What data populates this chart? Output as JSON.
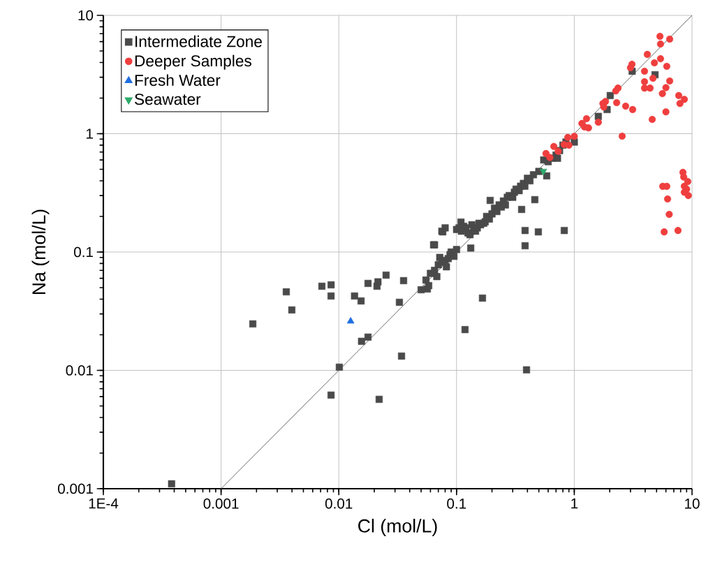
{
  "chart_data": {
    "type": "scatter",
    "xlabel": "Cl (mol/L)",
    "ylabel": "Na (mol/L)",
    "log": "xy",
    "grid": true,
    "legend": "top left",
    "xlim": [
      0.0001,
      10
    ],
    "ylim": [
      0.001,
      10
    ],
    "xticks": [
      {
        "value": 0.0001,
        "label": "1E-4"
      },
      0.001,
      0.01,
      0.1,
      1,
      10
    ],
    "yticks": [
      0.001,
      0.01,
      0.1,
      1,
      10
    ],
    "series": [
      {
        "name": "Intermediate Zone",
        "color": "#4a4a4a",
        "marker": "square",
        "x": [
          0.00038,
          0.00186,
          0.00358,
          0.00399,
          0.00718,
          0.00859,
          0.0086,
          0.00859,
          0.0101,
          0.0136,
          0.01545,
          0.0156,
          0.0177,
          0.0177,
          0.0211,
          0.0215,
          0.022,
          0.0252,
          0.0327,
          0.0341,
          0.0355,
          0.0565,
          0.166,
          0.118,
          0.393,
          0.382,
          0.495,
          0.822,
          0.382,
          0.462,
          0.357,
          0.583,
          0.132,
          0.0638,
          0.193,
          0.0764,
          0.109,
          0.05,
          0.055,
          0.058,
          0.06,
          0.065,
          0.065,
          0.068,
          0.07,
          0.072,
          0.075,
          0.075,
          0.08,
          0.08,
          0.082,
          0.085,
          0.088,
          0.09,
          0.095,
          0.1,
          0.1,
          0.105,
          0.11,
          0.115,
          0.12,
          0.125,
          0.13,
          0.135,
          0.14,
          0.145,
          0.15,
          0.155,
          0.16,
          0.17,
          0.175,
          0.18,
          0.19,
          0.2,
          0.21,
          0.22,
          0.23,
          0.24,
          0.25,
          0.26,
          0.27,
          0.28,
          0.3,
          0.31,
          0.32,
          0.34,
          0.35,
          0.37,
          0.38,
          0.4,
          0.42,
          0.45,
          0.5,
          0.55,
          0.6,
          0.65,
          0.7,
          0.72,
          0.75,
          0.8,
          0.85,
          1.0,
          1.6,
          1.9,
          2.02,
          3.1,
          4.85
        ],
        "values": [
          0.0011,
          0.0247,
          0.0461,
          0.0324,
          0.0514,
          0.0425,
          0.0528,
          0.00618,
          0.01064,
          0.0425,
          0.0386,
          0.0176,
          0.0191,
          0.0543,
          0.0514,
          0.056,
          0.00569,
          0.0638,
          0.0376,
          0.0132,
          0.0573,
          0.0487,
          0.0408,
          0.0221,
          0.0101,
          0.152,
          0.148,
          0.152,
          0.113,
          0.277,
          0.229,
          0.44,
          0.108,
          0.115,
          0.273,
          0.148,
          0.179,
          0.048,
          0.058,
          0.052,
          0.066,
          0.07,
          0.115,
          0.062,
          0.078,
          0.09,
          0.082,
          0.15,
          0.085,
          0.16,
          0.075,
          0.088,
          0.095,
          0.1,
          0.092,
          0.105,
          0.155,
          0.16,
          0.15,
          0.165,
          0.16,
          0.145,
          0.14,
          0.17,
          0.155,
          0.15,
          0.16,
          0.175,
          0.17,
          0.175,
          0.18,
          0.2,
          0.19,
          0.21,
          0.235,
          0.22,
          0.25,
          0.24,
          0.27,
          0.25,
          0.29,
          0.3,
          0.29,
          0.32,
          0.34,
          0.33,
          0.36,
          0.38,
          0.36,
          0.42,
          0.4,
          0.45,
          0.48,
          0.6,
          0.58,
          0.62,
          0.66,
          0.62,
          0.72,
          0.8,
          0.85,
          0.85,
          1.4,
          1.6,
          2.1,
          3.37,
          3.15
        ]
      },
      {
        "name": "Deeper Samples",
        "color": "#ef3e3e",
        "marker": "circle",
        "x": [
          5.34,
          6.46,
          5.4,
          4.17,
          3.09,
          3.0,
          4.79,
          5.4,
          6.1,
          3.95,
          4.66,
          3.95,
          3.95,
          4.4,
          6.46,
          6.0,
          5.6,
          7.71,
          8.6,
          7.9,
          6.0,
          4.59,
          3.13,
          2.73,
          2.29,
          2.35,
          2.25,
          1.84,
          1.75,
          1.78,
          1.6,
          1.27,
          1.16,
          1.32,
          1.22,
          2.55,
          1.0,
          0.88,
          0.82,
          0.67,
          0.575,
          0.73,
          0.9,
          0.62,
          8.37,
          8.5,
          9.2,
          8.6,
          9.0,
          9.3,
          8.6,
          5.64,
          6.1,
          6.2,
          6.4,
          5.8,
          7.6
        ],
        "values": [
          6.65,
          6.3,
          5.73,
          4.68,
          3.86,
          3.61,
          3.97,
          4.3,
          3.71,
          3.37,
          2.94,
          2.75,
          2.43,
          2.43,
          2.79,
          2.45,
          2.18,
          2.1,
          1.95,
          1.8,
          1.53,
          1.32,
          1.6,
          1.71,
          1.83,
          2.43,
          2.3,
          1.87,
          1.8,
          1.68,
          1.25,
          1.34,
          1.22,
          1.12,
          1.14,
          0.953,
          0.95,
          0.93,
          0.81,
          0.78,
          0.68,
          0.71,
          0.8,
          0.63,
          0.471,
          0.43,
          0.394,
          0.36,
          0.34,
          0.3,
          0.32,
          0.359,
          0.359,
          0.281,
          0.208,
          0.148,
          0.152
        ]
      },
      {
        "name": "Fresh Water",
        "color": "#1f6fe0",
        "marker": "triangle",
        "x": [
          0.0126
        ],
        "values": [
          0.026
        ]
      },
      {
        "name": "Seawater",
        "color": "#2eaa6a",
        "marker": "triangle down",
        "x": [
          0.546
        ],
        "values": [
          0.483
        ]
      },
      {
        "type": "line",
        "color": "#606060",
        "marker": "none",
        "x": [
          0.001,
          10
        ],
        "values": [
          0.001,
          10
        ]
      }
    ]
  }
}
